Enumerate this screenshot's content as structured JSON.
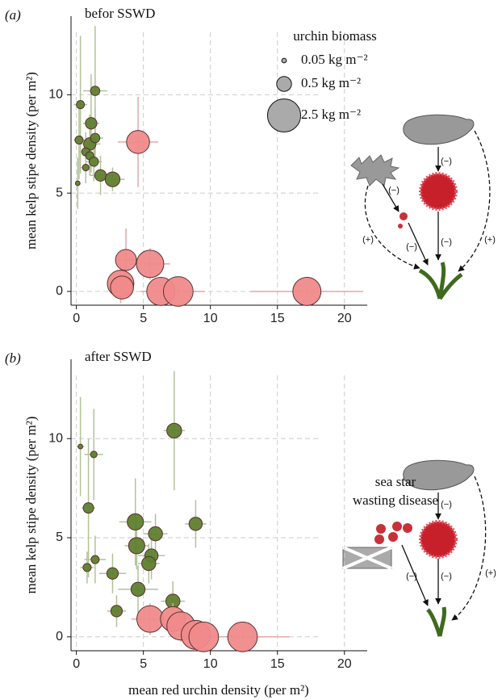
{
  "chart_data": [
    {
      "type": "scatter",
      "label": "(a)",
      "title": "befor SSWD",
      "ylabel": "mean kelp stipe density (per m²)",
      "xlim": [
        -0.4,
        21.7
      ],
      "ylim": [
        -0.7,
        14
      ],
      "xticks": [
        0,
        5,
        10,
        15,
        20
      ],
      "yticks": [
        0,
        5,
        10
      ],
      "grid": true,
      "size_legend": {
        "title": "urchin biomass",
        "values": [
          0.05,
          0.5,
          2.5
        ],
        "labels": [
          "0.05 kg m⁻²",
          "0.5 kg m⁻²",
          "2.5 kg m⁻²"
        ]
      },
      "series": [
        {
          "color": "#5f7f2f",
          "error_color": "#b3c29a",
          "x": [
            0.1,
            0.3,
            1.1,
            1.4,
            0.2,
            1.0,
            1.4,
            0.7,
            1.0,
            1.3,
            0.7,
            1.8,
            2.7
          ],
          "y": [
            5.5,
            9.5,
            8.55,
            10.2,
            7.7,
            7.5,
            7.8,
            7.1,
            6.9,
            6.6,
            6.3,
            5.9,
            5.7
          ],
          "size": [
            0.05,
            0.15,
            0.3,
            0.2,
            0.15,
            0.35,
            0.2,
            0.15,
            0.15,
            0.2,
            0.1,
            0.3,
            0.5
          ],
          "xerr": [
            0.2,
            0.5,
            0.6,
            0.9,
            0.4,
            0.8,
            0.6,
            0.5,
            0.4,
            0.6,
            0.4,
            0.8,
            0.9
          ],
          "yerr": [
            1.3,
            3.5,
            2.5,
            3.3,
            2,
            1.5,
            1.5,
            1,
            1,
            1,
            0.8,
            1,
            0.6
          ]
        },
        {
          "color": "#f08a8a",
          "error_color": "#e6a6a6",
          "x": [
            4.6,
            3.7,
            5.5,
            3.3,
            3.4,
            6.3,
            7.6,
            17.2
          ],
          "y": [
            7.6,
            1.6,
            1.4,
            0.4,
            0.2,
            0,
            0,
            0
          ],
          "size": [
            1.2,
            1.0,
            1.7,
            1.6,
            1.2,
            1.8,
            2.0,
            1.8
          ],
          "xerr": [
            1.5,
            0.7,
            1.5,
            0.8,
            0.5,
            1.5,
            2,
            4.2
          ],
          "yerr": [
            2.3,
            1.6,
            0.8,
            1,
            0.6,
            0.4,
            0.3,
            0.2
          ]
        }
      ],
      "annotations": [
        "(−)",
        "(−)",
        "(−)",
        "(−)",
        "(+)",
        "(+)"
      ]
    },
    {
      "type": "scatter",
      "label": "(b)",
      "title": "after SSWD",
      "ylabel": "mean kelp stipe density (per m²)",
      "xlabel": "mean red urchin density (per m²)",
      "xlim": [
        -0.4,
        21.7
      ],
      "ylim": [
        -0.7,
        14
      ],
      "xticks": [
        0,
        5,
        10,
        15,
        20
      ],
      "yticks": [
        0,
        5,
        10
      ],
      "grid": true,
      "series": [
        {
          "color": "#5f7f2f",
          "error_color": "#b3c29a",
          "x": [
            0.3,
            1.3,
            7.3,
            0.9,
            4.4,
            8.9,
            5.9,
            4.5,
            5.6,
            5.4,
            1.4,
            0.8,
            2.7,
            4.6,
            7.2,
            3.0
          ],
          "y": [
            9.6,
            9.2,
            10.4,
            6.5,
            5.8,
            5.7,
            5.2,
            4.6,
            4.1,
            3.7,
            3.9,
            3.5,
            3.2,
            2.4,
            1.8,
            1.3
          ],
          "size": [
            0.05,
            0.1,
            0.5,
            0.25,
            0.6,
            0.4,
            0.45,
            0.6,
            0.4,
            0.45,
            0.15,
            0.15,
            0.3,
            0.45,
            0.45,
            0.3
          ],
          "xerr": [
            0.3,
            0.7,
            0.8,
            0.5,
            1.2,
            0.8,
            0.9,
            0.9,
            1,
            0.8,
            0.8,
            0.5,
            1,
            1.5,
            0.9,
            0.7
          ],
          "yerr": [
            2.5,
            2.3,
            3,
            3.5,
            2.2,
            1.2,
            1,
            1.2,
            1.2,
            1,
            1.2,
            0.8,
            1,
            1.2,
            1,
            0.8
          ]
        },
        {
          "color": "#f08a8a",
          "error_color": "#e6a6a6",
          "x": [
            5.5,
            7.2,
            7.8,
            8.9,
            9.5,
            12.4
          ],
          "y": [
            0.9,
            0.9,
            0.55,
            0.1,
            0,
            0
          ],
          "size": [
            1.6,
            1.4,
            1.8,
            1.9,
            2.0,
            2.0
          ],
          "xerr": [
            1.4,
            1,
            1.2,
            1,
            1.2,
            3.5
          ],
          "yerr": [
            0.8,
            0.8,
            0.8,
            0.4,
            0.3,
            0.3
          ]
        }
      ],
      "annotations": [
        "sea star",
        "wasting disease",
        "(−)",
        "(−)",
        "(−)",
        "(+)"
      ]
    }
  ]
}
